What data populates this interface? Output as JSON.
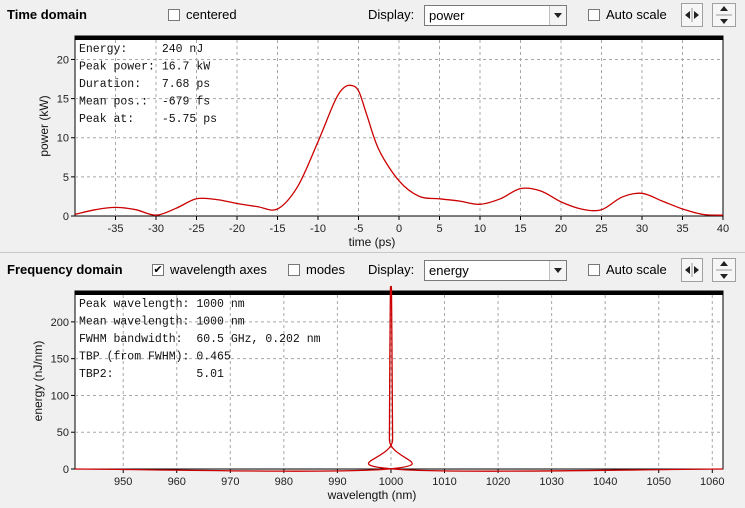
{
  "time_toolbar": {
    "title": "Time domain",
    "centered_label": "centered",
    "centered_checked": false,
    "display_label": "Display:",
    "display_value": "power",
    "autoscale_label": "Auto scale",
    "autoscale_checked": false
  },
  "freq_toolbar": {
    "title": "Frequency domain",
    "wavelength_label": "wavelength axes",
    "wavelength_checked": true,
    "modes_label": "modes",
    "modes_checked": false,
    "display_label": "Display:",
    "display_value": "energy",
    "autoscale_label": "Auto scale",
    "autoscale_checked": false
  },
  "time_info": [
    "Energy:     240 nJ",
    "Peak power: 16.7 kW",
    "Duration:   7.68 ps",
    "Mean pos.:  -679 fs",
    "Peak at:    -5.75 ps"
  ],
  "freq_info": [
    "Peak wavelength: 1000 nm",
    "Mean wavelength: 1000 nm",
    "FWHM bandwidth:  60.5 GHz, 0.202 nm",
    "TBP (from FWHM): 0.465",
    "TBP2:            5.01"
  ],
  "chart_data": [
    {
      "type": "line",
      "xlabel": "time (ps)",
      "ylabel": "power (kW)",
      "xlim": [
        -40,
        40
      ],
      "ylim": [
        0,
        23
      ],
      "xticks": [
        -35,
        -30,
        -25,
        -20,
        -15,
        -10,
        -5,
        0,
        5,
        10,
        15,
        20,
        25,
        30,
        35,
        40
      ],
      "yticks": [
        0,
        5,
        10,
        15,
        20
      ],
      "grid": true,
      "line_color": "#cc0000",
      "x": [
        -40,
        -37.5,
        -35,
        -32.5,
        -30,
        -27.5,
        -25,
        -22.5,
        -20,
        -17.5,
        -15,
        -12.5,
        -10,
        -8,
        -7,
        -6,
        -5,
        -4,
        -2.5,
        0,
        2.5,
        5,
        7.5,
        10,
        12.5,
        15,
        17.5,
        20,
        22.5,
        25,
        27.5,
        30,
        32.5,
        35,
        37.5,
        40
      ],
      "y": [
        0.2,
        0.8,
        1.1,
        0.8,
        0.1,
        1.0,
        2.2,
        2.1,
        1.6,
        1.2,
        0.9,
        3.8,
        9.5,
        14.5,
        16.2,
        16.7,
        16.0,
        13.0,
        8.5,
        4.5,
        2.5,
        2.2,
        1.9,
        1.5,
        2.2,
        3.5,
        3.2,
        1.8,
        0.9,
        0.8,
        2.4,
        2.9,
        1.9,
        0.9,
        0.2,
        0.1
      ]
    },
    {
      "type": "line",
      "xlabel": "wavelength (nm)",
      "ylabel": "energy (nJ/nm)",
      "xlim": [
        941,
        1062
      ],
      "ylim": [
        0,
        242
      ],
      "xticks": [
        950,
        960,
        970,
        980,
        990,
        1000,
        1010,
        1020,
        1030,
        1040,
        1050,
        1060
      ],
      "yticks": [
        0,
        50,
        100,
        150,
        200
      ],
      "grid": true,
      "line_color": "#cc0000",
      "x": [
        941,
        999.6,
        999.7,
        999.8,
        999.9,
        1000.0,
        1000.1,
        1000.2,
        1000.3,
        1000.4,
        1062
      ],
      "y": [
        0,
        0,
        40,
        160,
        242,
        242,
        242,
        160,
        40,
        0,
        0
      ]
    }
  ]
}
